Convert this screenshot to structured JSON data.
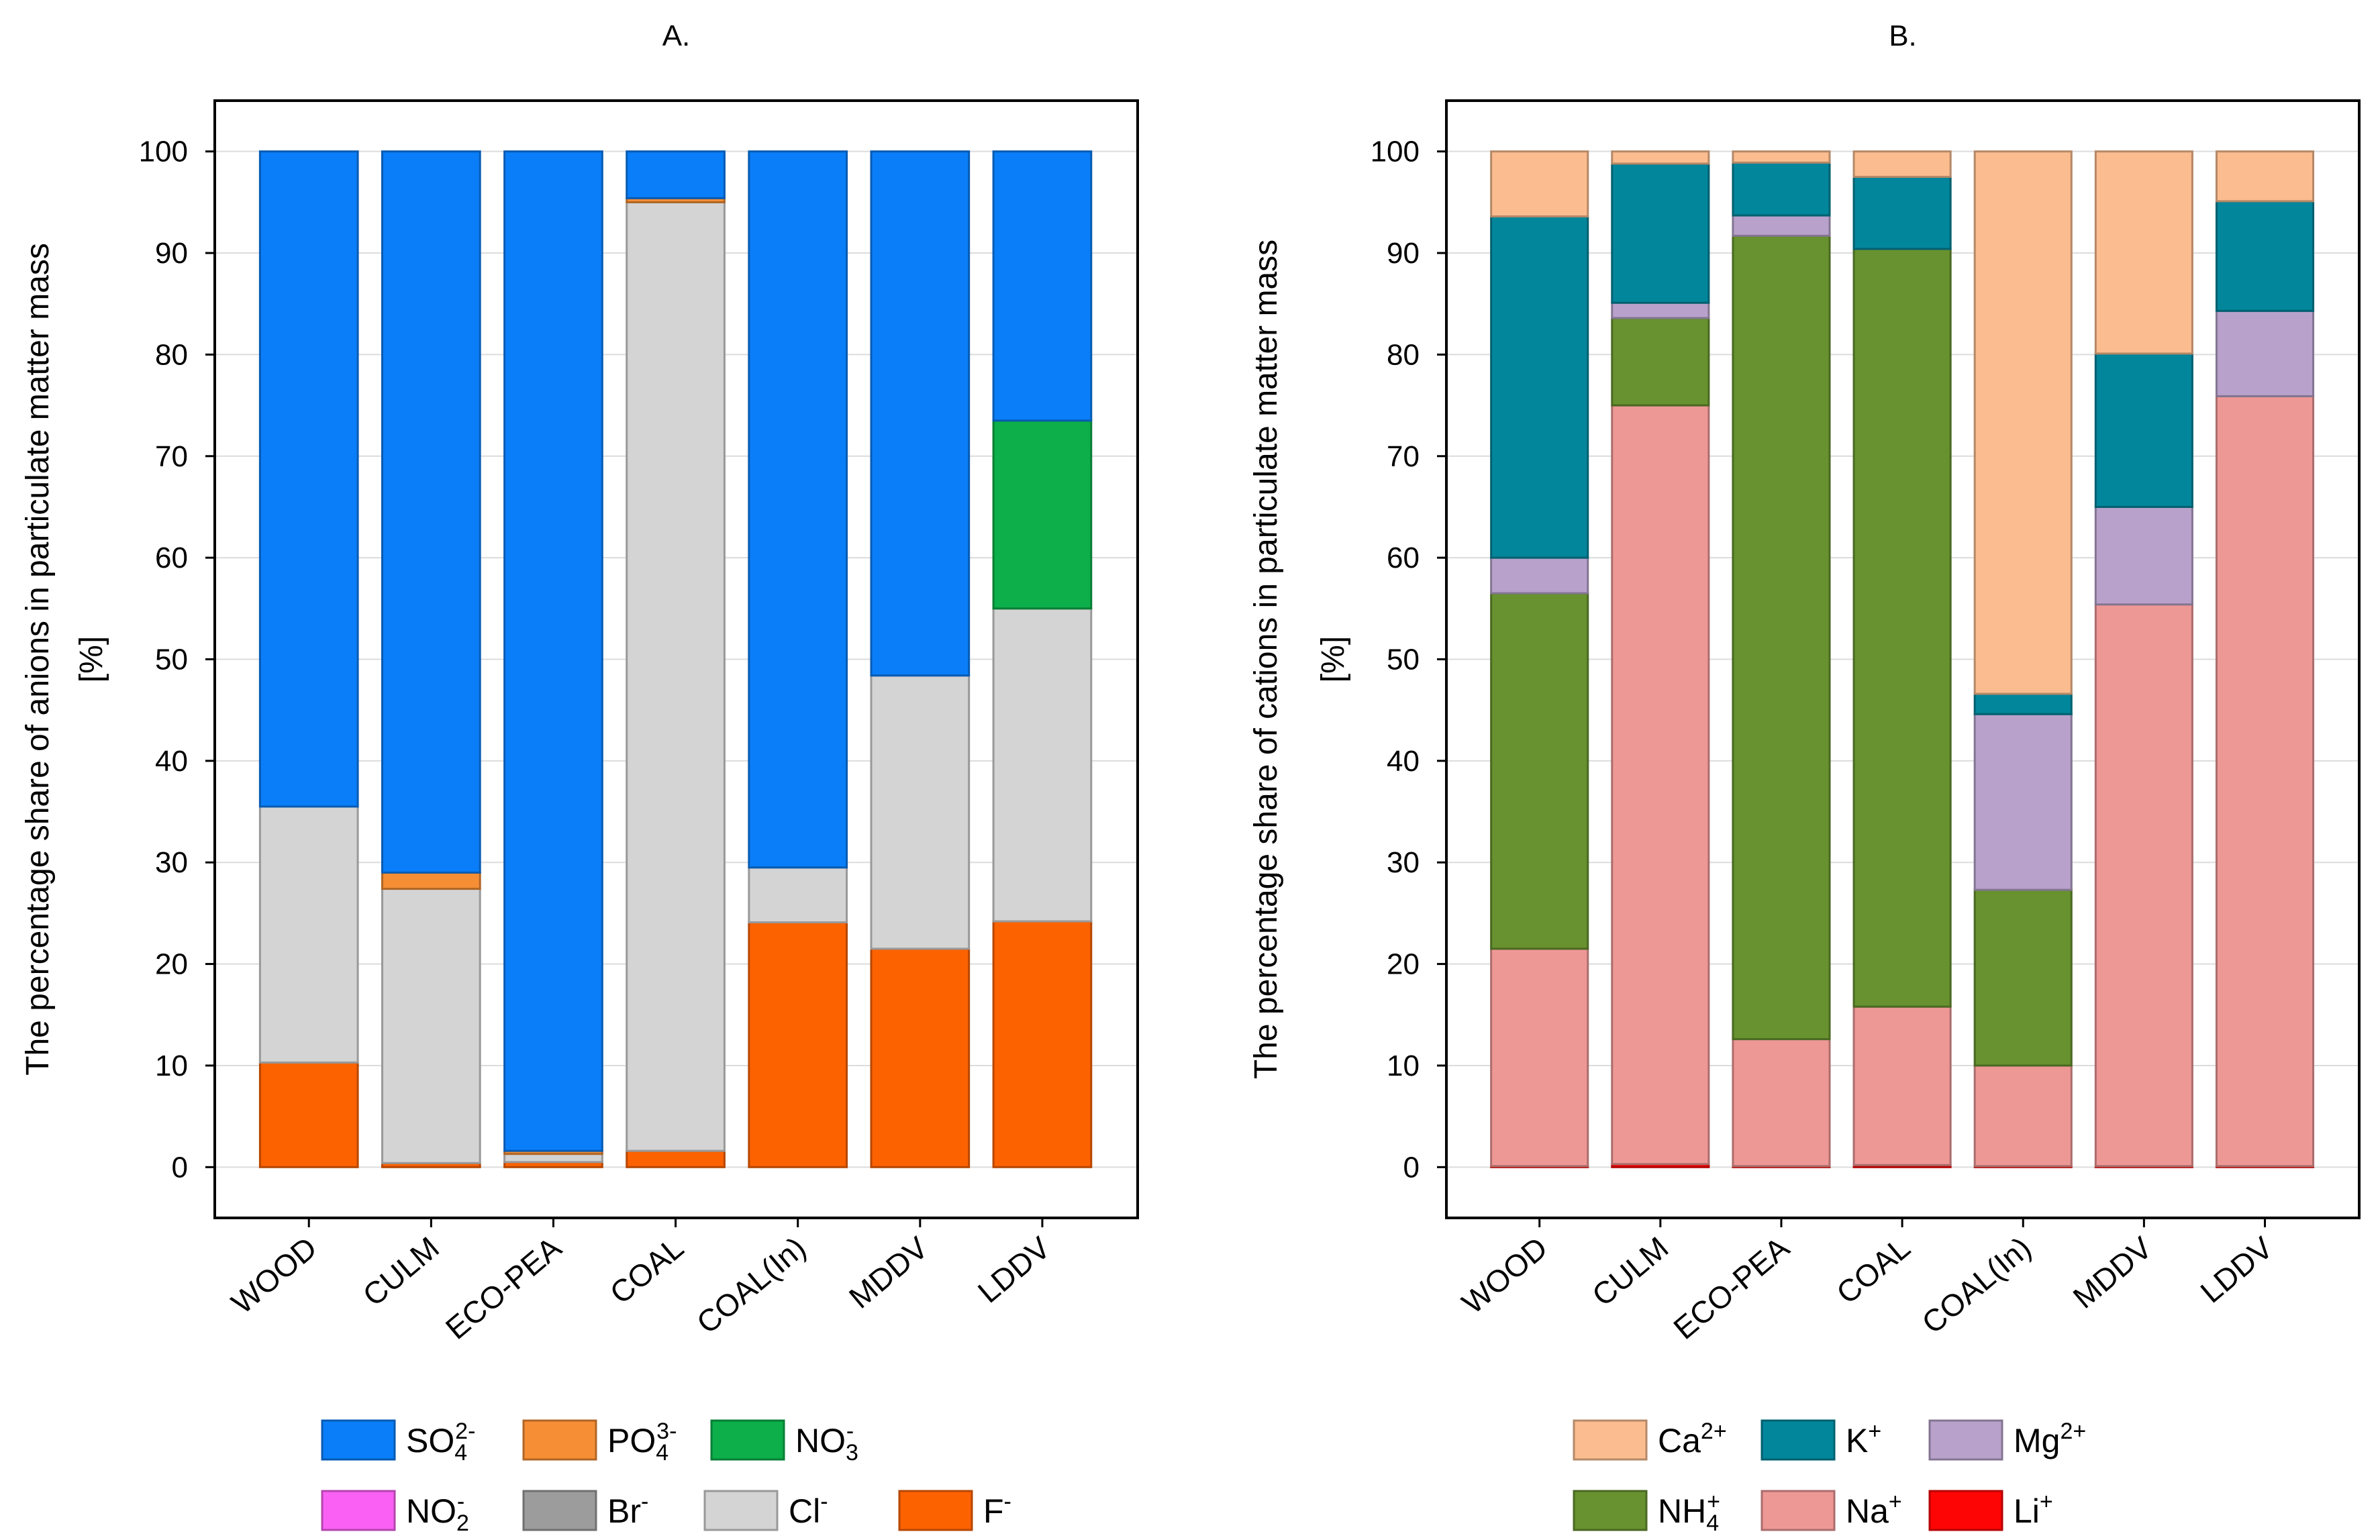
{
  "colors": {
    "SO4": "#0a7ef8",
    "PO4": "#f58e35",
    "NO3": "#0caf49",
    "NO2": "#fa60f3",
    "Br": "#9c9c9c",
    "Cl": "#d4d4d4",
    "F": "#fd6201",
    "Ca": "#fbbd8f",
    "K": "#02869b",
    "Mg": "#b8a2cb",
    "NH4": "#67922f",
    "Na": "#ee9896",
    "Li": "#fc0504"
  },
  "chart_data": [
    {
      "type": "bar",
      "stacked": true,
      "title": "A.",
      "ylabel_line1": "The percentage share of anions in particulate matter mass",
      "ylabel_line2": "[%]",
      "ylim": [
        -5,
        105
      ],
      "yticks": [
        "0",
        "10",
        "20",
        "30",
        "40",
        "50",
        "60",
        "70",
        "80",
        "90",
        "100"
      ],
      "categories": [
        "WOOD",
        "CULM",
        "ECO-PEA",
        "COAL",
        "COAL(In)",
        "MDDV",
        "LDDV"
      ],
      "series": [
        {
          "key": "F",
          "name": "F",
          "sup": "-",
          "sub": "",
          "values": [
            10.3,
            0.4,
            0.5,
            1.6,
            24.1,
            21.5,
            24.2
          ]
        },
        {
          "key": "Cl",
          "name": "Cl",
          "sup": "-",
          "sub": "",
          "values": [
            25.2,
            27.0,
            0.8,
            93.4,
            5.4,
            26.9,
            30.8
          ]
        },
        {
          "key": "Br",
          "name": "Br",
          "sup": "-",
          "sub": "",
          "values": [
            0,
            0,
            0,
            0,
            0,
            0,
            0
          ]
        },
        {
          "key": "NO2",
          "name": "NO",
          "sup": "-",
          "sub": "2",
          "values": [
            0,
            0,
            0,
            0,
            0,
            0,
            0
          ]
        },
        {
          "key": "NO3",
          "name": "NO",
          "sup": "-",
          "sub": "3",
          "values": [
            0,
            0,
            0,
            0,
            0,
            0,
            18.5
          ]
        },
        {
          "key": "PO4",
          "name": "PO",
          "sup": "3-",
          "sub": "4",
          "values": [
            0,
            1.6,
            0.3,
            0.4,
            0,
            0,
            0
          ]
        },
        {
          "key": "SO4",
          "name": "SO",
          "sup": "2-",
          "sub": "4",
          "values": [
            64.5,
            71.0,
            98.4,
            4.6,
            70.5,
            51.6,
            26.5
          ]
        }
      ],
      "legend": [
        [
          "SO4",
          "PO4",
          "NO3"
        ],
        [
          "NO2",
          "Br",
          "Cl",
          "F"
        ]
      ]
    },
    {
      "type": "bar",
      "stacked": true,
      "title": "B.",
      "ylabel_line1": "The percentage share of cations in particulate matter mass",
      "ylabel_line2": "[%]",
      "ylim": [
        -5,
        105
      ],
      "yticks": [
        "0",
        "10",
        "20",
        "30",
        "40",
        "50",
        "60",
        "70",
        "80",
        "90",
        "100"
      ],
      "categories": [
        "WOOD",
        "CULM",
        "ECO-PEA",
        "COAL",
        "COAL(In)",
        "MDDV",
        "LDDV"
      ],
      "series": [
        {
          "key": "Li",
          "name": "Li",
          "sup": "+",
          "sub": "",
          "values": [
            0.1,
            0.3,
            0.1,
            0.2,
            0.1,
            0.1,
            0.1
          ]
        },
        {
          "key": "Na",
          "name": "Na",
          "sup": "+",
          "sub": "",
          "values": [
            21.4,
            74.7,
            12.5,
            15.6,
            9.9,
            55.3,
            75.8
          ]
        },
        {
          "key": "NH4",
          "name": "NH",
          "sup": "+",
          "sub": "4",
          "values": [
            35.0,
            8.6,
            79.1,
            74.6,
            17.3,
            0,
            0
          ]
        },
        {
          "key": "Mg",
          "name": "Mg",
          "sup": "2+",
          "sub": "",
          "values": [
            3.5,
            1.5,
            2.0,
            0,
            17.3,
            9.6,
            8.4
          ]
        },
        {
          "key": "K",
          "name": "K",
          "sup": "+",
          "sub": "",
          "values": [
            33.6,
            13.7,
            5.2,
            7.1,
            2.0,
            15.1,
            10.8
          ]
        },
        {
          "key": "Ca",
          "name": "Ca",
          "sup": "2+",
          "sub": "",
          "values": [
            6.4,
            1.2,
            1.1,
            2.5,
            53.4,
            19.9,
            4.9
          ]
        }
      ],
      "legend": [
        [
          "Ca",
          "K",
          "Mg"
        ],
        [
          "NH4",
          "Na",
          "Li"
        ]
      ]
    }
  ]
}
